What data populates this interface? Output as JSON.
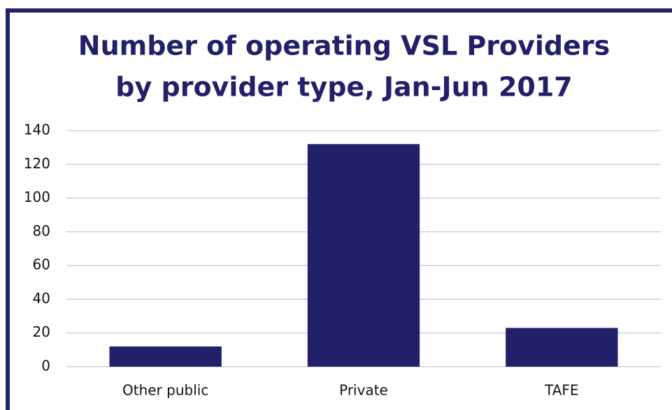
{
  "chart_data": {
    "type": "bar",
    "title": [
      "Number of operating VSL Providers",
      "by provider type, Jan-Jun 2017"
    ],
    "categories": [
      "Other public",
      "Private",
      "TAFE"
    ],
    "values": [
      12,
      132,
      23
    ],
    "color": "#23206a",
    "ylim": [
      0,
      140
    ],
    "yticks": [
      0,
      20,
      40,
      60,
      80,
      100,
      120,
      140
    ],
    "grid": true
  }
}
